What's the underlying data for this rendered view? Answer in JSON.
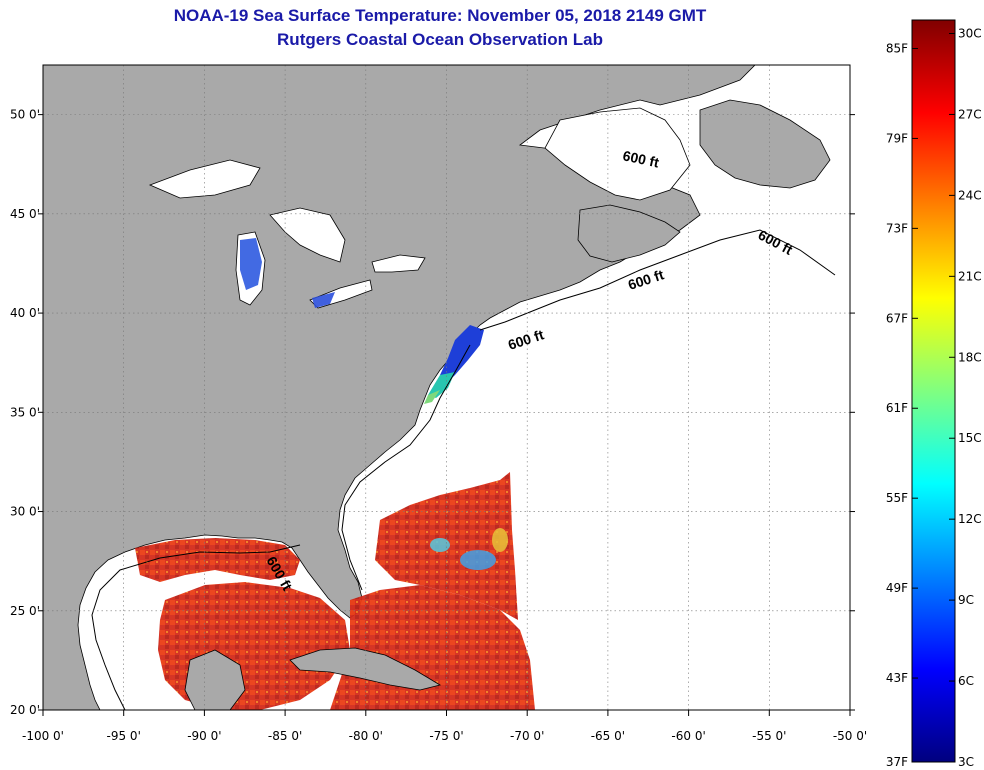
{
  "title": {
    "line1": "NOAA-19 Sea Surface Temperature:  November 05, 2018 2149 GMT",
    "line2": "Rutgers Coastal Ocean Observation Lab"
  },
  "map": {
    "lon_range": [
      -100,
      -50
    ],
    "lat_range": [
      20,
      52.5
    ],
    "lon_ticks": [
      "-100 0'",
      "-95 0'",
      "-90 0'",
      "-85 0'",
      "-80 0'",
      "-75 0'",
      "-70 0'",
      "-65 0'",
      "-60 0'",
      "-55 0'",
      "-50 0'"
    ],
    "lat_ticks": [
      "50 0'",
      "45 0'",
      "40 0'",
      "35 0'",
      "30 0'",
      "25 0'",
      "20 0'"
    ],
    "contour_label": "600 ft",
    "colors": {
      "land": "#a9a9a9",
      "ocean_no_data": "#ffffff",
      "warm_sst": "#d42a1a",
      "cool_sst": "#1f3fd6"
    }
  },
  "colorbar": {
    "fahrenheit_labels": [
      "85F",
      "79F",
      "73F",
      "67F",
      "61F",
      "55F",
      "49F",
      "43F",
      "37F"
    ],
    "celsius_labels": [
      "30C",
      "27C",
      "24C",
      "21C",
      "18C",
      "15C",
      "12C",
      "9C",
      "6C",
      "3C"
    ],
    "min_c": 3,
    "max_c": 30.5,
    "gradient": [
      "#00007f",
      "#0000ff",
      "#0080ff",
      "#00ffff",
      "#80ff80",
      "#ffff00",
      "#ff8000",
      "#ff0000",
      "#800000"
    ]
  }
}
